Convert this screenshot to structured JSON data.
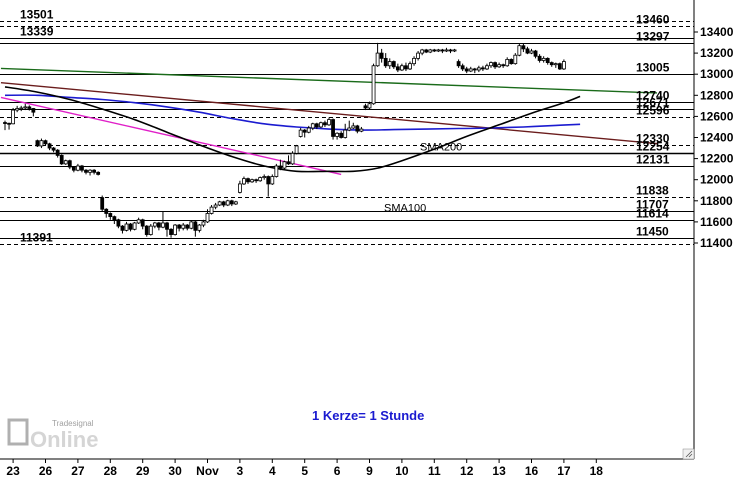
{
  "chart_data": {
    "type": "candlestick",
    "title": "",
    "note": "1 Kerze= 1 Stunde",
    "logo": {
      "brand": "Tradesignal",
      "wordmark": "Online"
    },
    "y_axis": {
      "range": [
        11360,
        13500
      ],
      "ticks": [
        11400,
        11600,
        11800,
        12000,
        12200,
        12400,
        12600,
        12800,
        13000,
        13200,
        13400
      ]
    },
    "x_axis": {
      "labels": [
        {
          "text": "23",
          "i": 2
        },
        {
          "text": "26",
          "i": 10
        },
        {
          "text": "27",
          "i": 18
        },
        {
          "text": "28",
          "i": 26
        },
        {
          "text": "29",
          "i": 34
        },
        {
          "text": "30",
          "i": 42
        },
        {
          "text": "Nov",
          "i": 50
        },
        {
          "text": "3",
          "i": 58
        },
        {
          "text": "4",
          "i": 66
        },
        {
          "text": "5",
          "i": 74
        },
        {
          "text": "6",
          "i": 82
        },
        {
          "text": "9",
          "i": 90
        },
        {
          "text": "10",
          "i": 98
        },
        {
          "text": "11",
          "i": 106
        },
        {
          "text": "12",
          "i": 114
        },
        {
          "text": "13",
          "i": 122
        },
        {
          "text": "16",
          "i": 130
        },
        {
          "text": "17",
          "i": 138
        },
        {
          "text": "18",
          "i": 146
        }
      ]
    },
    "levels": [
      {
        "value": 13501,
        "label": "13501",
        "style": "dashed",
        "label_side": "left"
      },
      {
        "value": 13460,
        "label": "13460",
        "style": "dashed",
        "label_side": "right"
      },
      {
        "value": 13339,
        "label": "13339",
        "style": "solid",
        "label_side": "left"
      },
      {
        "value": 13297,
        "label": "13297",
        "style": "solid",
        "label_side": "right"
      },
      {
        "value": 13005,
        "label": "13005",
        "style": "solid",
        "label_side": "right"
      },
      {
        "value": 12740,
        "label": "12740",
        "style": "solid",
        "label_side": "right"
      },
      {
        "value": 12671,
        "label": "12671",
        "style": "solid",
        "label_side": "right"
      },
      {
        "value": 12596,
        "label": "12596",
        "style": "dashed",
        "label_side": "right"
      },
      {
        "value": 12330,
        "label": "12330",
        "style": "dashed",
        "label_side": "right"
      },
      {
        "value": 12254,
        "label": "12254",
        "style": "solid",
        "label_side": "right",
        "bold": true
      },
      {
        "value": 12131,
        "label": "12131",
        "style": "solid",
        "label_side": "right"
      },
      {
        "value": 11838,
        "label": "11838",
        "style": "dashed",
        "label_side": "right"
      },
      {
        "value": 11707,
        "label": "11707",
        "style": "solid",
        "label_side": "right"
      },
      {
        "value": 11614,
        "label": "11614",
        "style": "solid",
        "label_side": "right"
      },
      {
        "value": 11450,
        "label": "11450",
        "style": "solid",
        "label_side": "right"
      },
      {
        "value": 11391,
        "label": "11391",
        "style": "dashed",
        "label_side": "left"
      }
    ],
    "series": [
      {
        "name": "SMA200",
        "color": "#1b1bd0",
        "points": [
          [
            0,
            12800
          ],
          [
            8,
            12800
          ],
          [
            16,
            12780
          ],
          [
            24,
            12760
          ],
          [
            32,
            12730
          ],
          [
            40,
            12690
          ],
          [
            48,
            12640
          ],
          [
            56,
            12580
          ],
          [
            64,
            12530
          ],
          [
            72,
            12500
          ],
          [
            80,
            12480
          ],
          [
            88,
            12470
          ],
          [
            96,
            12475
          ],
          [
            104,
            12480
          ],
          [
            112,
            12485
          ],
          [
            120,
            12490
          ],
          [
            128,
            12500
          ],
          [
            136,
            12515
          ],
          [
            142,
            12525
          ]
        ]
      },
      {
        "name": "SMA100",
        "color": "#000000",
        "points": [
          [
            0,
            12880
          ],
          [
            8,
            12830
          ],
          [
            16,
            12760
          ],
          [
            24,
            12670
          ],
          [
            32,
            12570
          ],
          [
            40,
            12450
          ],
          [
            48,
            12330
          ],
          [
            56,
            12220
          ],
          [
            64,
            12130
          ],
          [
            72,
            12080
          ],
          [
            80,
            12080
          ],
          [
            86,
            12080
          ],
          [
            92,
            12110
          ],
          [
            98,
            12180
          ],
          [
            106,
            12290
          ],
          [
            114,
            12410
          ],
          [
            122,
            12520
          ],
          [
            130,
            12630
          ],
          [
            138,
            12730
          ],
          [
            142,
            12790
          ]
        ]
      }
    ],
    "trendlines": [
      {
        "color": "#1a6b1a",
        "from": [
          -1,
          13055
        ],
        "to": [
          161,
          12822
        ]
      },
      {
        "color": "#6b1d1d",
        "from": [
          -1,
          12920
        ],
        "to": [
          161,
          12342
        ]
      },
      {
        "color": "#e020c8",
        "from": [
          -1,
          12780
        ],
        "to": [
          83,
          12050
        ]
      }
    ],
    "candles": [
      [
        12542,
        12535,
        12560,
        12470
      ],
      [
        12535,
        12530,
        12540,
        12475
      ],
      [
        12530,
        12660,
        12680,
        12525
      ],
      [
        12660,
        12675,
        12700,
        12640
      ],
      [
        12675,
        12680,
        12700,
        12650
      ],
      [
        12680,
        12690,
        12720,
        12660
      ],
      [
        12690,
        12675,
        12705,
        12655
      ],
      [
        12675,
        12640,
        12680,
        12600
      ],
      [
        12370,
        12320,
        12380,
        12310
      ],
      [
        12320,
        12370,
        12390,
        12300
      ],
      [
        12370,
        12340,
        12380,
        12320
      ],
      [
        12340,
        12300,
        12350,
        12280
      ],
      [
        12300,
        12280,
        12310,
        12260
      ],
      [
        12280,
        12230,
        12290,
        12210
      ],
      [
        12230,
        12150,
        12240,
        12140
      ],
      [
        12150,
        12180,
        12190,
        12140
      ],
      [
        12180,
        12120,
        12190,
        12100
      ],
      [
        12120,
        12090,
        12130,
        12070
      ],
      [
        12090,
        12130,
        12150,
        12080
      ],
      [
        12130,
        12090,
        12140,
        12070
      ],
      [
        12090,
        12070,
        12100,
        12050
      ],
      [
        12070,
        12090,
        12100,
        12040
      ],
      [
        12090,
        12070,
        12100,
        12050
      ],
      [
        12070,
        12050,
        12080,
        12040
      ],
      [
        11830,
        11720,
        11850,
        11700
      ],
      [
        11720,
        11680,
        11730,
        11640
      ],
      [
        11680,
        11650,
        11690,
        11620
      ],
      [
        11650,
        11620,
        11660,
        11580
      ],
      [
        11620,
        11560,
        11630,
        11540
      ],
      [
        11560,
        11520,
        11570,
        11490
      ],
      [
        11520,
        11580,
        11600,
        11510
      ],
      [
        11580,
        11530,
        11590,
        11510
      ],
      [
        11530,
        11590,
        11600,
        11520
      ],
      [
        11590,
        11620,
        11640,
        11580
      ],
      [
        11620,
        11560,
        11630,
        11530
      ],
      [
        11560,
        11480,
        11570,
        11460
      ],
      [
        11480,
        11560,
        11580,
        11470
      ],
      [
        11560,
        11590,
        11600,
        11540
      ],
      [
        11590,
        11550,
        11600,
        11520
      ],
      [
        11550,
        11590,
        11700,
        11540
      ],
      [
        11590,
        11530,
        11600,
        11460
      ],
      [
        11530,
        11480,
        11540,
        11450
      ],
      [
        11480,
        11570,
        11580,
        11470
      ],
      [
        11570,
        11540,
        11580,
        11510
      ],
      [
        11540,
        11570,
        11590,
        11520
      ],
      [
        11570,
        11540,
        11580,
        11520
      ],
      [
        11540,
        11600,
        11610,
        11530
      ],
      [
        11600,
        11520,
        11610,
        11460
      ],
      [
        11520,
        11570,
        11580,
        11500
      ],
      [
        11570,
        11600,
        11620,
        11550
      ],
      [
        11600,
        11680,
        11720,
        11590
      ],
      [
        11680,
        11740,
        11760,
        11670
      ],
      [
        11740,
        11760,
        11780,
        11720
      ],
      [
        11760,
        11790,
        11800,
        11750
      ],
      [
        11790,
        11760,
        11800,
        11740
      ],
      [
        11760,
        11800,
        11810,
        11750
      ],
      [
        11800,
        11770,
        11810,
        11750
      ],
      [
        11770,
        11790,
        11800,
        11760
      ],
      [
        11880,
        11960,
        11990,
        11870
      ],
      [
        11960,
        12010,
        12030,
        11950
      ],
      [
        12010,
        11980,
        12020,
        11960
      ],
      [
        11980,
        12000,
        12010,
        11970
      ],
      [
        12000,
        11990,
        12010,
        11970
      ],
      [
        11990,
        12020,
        12030,
        11980
      ],
      [
        12020,
        12030,
        12050,
        12000
      ],
      [
        12030,
        11960,
        12040,
        11840
      ],
      [
        11960,
        12030,
        12050,
        11950
      ],
      [
        12030,
        12130,
        12150,
        12020
      ],
      [
        12130,
        12110,
        12190,
        12090
      ],
      [
        12110,
        12170,
        12180,
        12100
      ],
      [
        12170,
        12150,
        12230,
        12140
      ],
      [
        12150,
        12250,
        12270,
        12140
      ],
      [
        12250,
        12320,
        12330,
        12240
      ],
      [
        12410,
        12470,
        12490,
        12400
      ],
      [
        12470,
        12450,
        12480,
        12400
      ],
      [
        12450,
        12490,
        12510,
        12440
      ],
      [
        12490,
        12530,
        12540,
        12470
      ],
      [
        12530,
        12500,
        12540,
        12480
      ],
      [
        12500,
        12540,
        12550,
        12490
      ],
      [
        12540,
        12520,
        12560,
        12500
      ],
      [
        12520,
        12570,
        12590,
        12510
      ],
      [
        12570,
        12410,
        12580,
        12380
      ],
      [
        12410,
        12440,
        12450,
        12380
      ],
      [
        12440,
        12400,
        12460,
        12390
      ],
      [
        12400,
        12470,
        12530,
        12390
      ],
      [
        12470,
        12490,
        12560,
        12460
      ],
      [
        12490,
        12510,
        12540,
        12480
      ],
      [
        12510,
        12460,
        12520,
        12440
      ],
      [
        12460,
        12480,
        12500,
        12450
      ],
      [
        12700,
        12680,
        12720,
        12660
      ],
      [
        12680,
        12720,
        12740,
        12670
      ],
      [
        12720,
        13080,
        13100,
        12710
      ],
      [
        13080,
        13200,
        13297,
        13070
      ],
      [
        13200,
        13150,
        13240,
        13110
      ],
      [
        13150,
        13080,
        13200,
        13060
      ],
      [
        13080,
        13120,
        13150,
        13050
      ],
      [
        13120,
        13070,
        13130,
        13050
      ],
      [
        13070,
        13040,
        13100,
        13020
      ],
      [
        13040,
        13080,
        13100,
        13030
      ],
      [
        13080,
        13050,
        13110,
        13030
      ],
      [
        13050,
        13100,
        13120,
        13040
      ],
      [
        13100,
        13150,
        13170,
        13080
      ],
      [
        13150,
        13200,
        13220,
        13130
      ],
      [
        13200,
        13230,
        13240,
        13180
      ],
      [
        13230,
        13210,
        13240,
        13200
      ],
      [
        13210,
        13230,
        13240,
        13200
      ],
      [
        13230,
        13220,
        13240,
        13210
      ],
      [
        13220,
        13230,
        13240,
        13210
      ],
      [
        13230,
        13220,
        13240,
        13200
      ],
      [
        13220,
        13230,
        13250,
        13210
      ],
      [
        13230,
        13220,
        13240,
        13200
      ],
      [
        13220,
        13230,
        13240,
        13210
      ],
      [
        13120,
        13080,
        13140,
        13060
      ],
      [
        13080,
        13050,
        13100,
        13030
      ],
      [
        13050,
        13030,
        13070,
        13010
      ],
      [
        13030,
        13050,
        13070,
        13020
      ],
      [
        13050,
        13040,
        13060,
        13010
      ],
      [
        13040,
        13060,
        13080,
        13020
      ],
      [
        13060,
        13050,
        13080,
        13030
      ],
      [
        13050,
        13080,
        13100,
        13040
      ],
      [
        13080,
        13110,
        13120,
        13060
      ],
      [
        13110,
        13070,
        13120,
        13050
      ],
      [
        13070,
        13090,
        13110,
        13060
      ],
      [
        13090,
        13080,
        13100,
        13060
      ],
      [
        13080,
        13140,
        13160,
        13070
      ],
      [
        13140,
        13100,
        13150,
        13090
      ],
      [
        13100,
        13180,
        13200,
        13090
      ],
      [
        13180,
        13270,
        13290,
        13170
      ],
      [
        13270,
        13240,
        13290,
        13210
      ],
      [
        13240,
        13200,
        13260,
        13190
      ],
      [
        13200,
        13220,
        13240,
        13190
      ],
      [
        13220,
        13170,
        13230,
        13150
      ],
      [
        13170,
        13130,
        13190,
        13110
      ],
      [
        13130,
        13150,
        13170,
        13110
      ],
      [
        13150,
        13110,
        13160,
        13090
      ],
      [
        13110,
        13090,
        13120,
        13070
      ],
      [
        13090,
        13100,
        13110,
        13060
      ],
      [
        13100,
        13050,
        13110,
        13040
      ],
      [
        13050,
        13120,
        13140,
        13040
      ]
    ]
  }
}
